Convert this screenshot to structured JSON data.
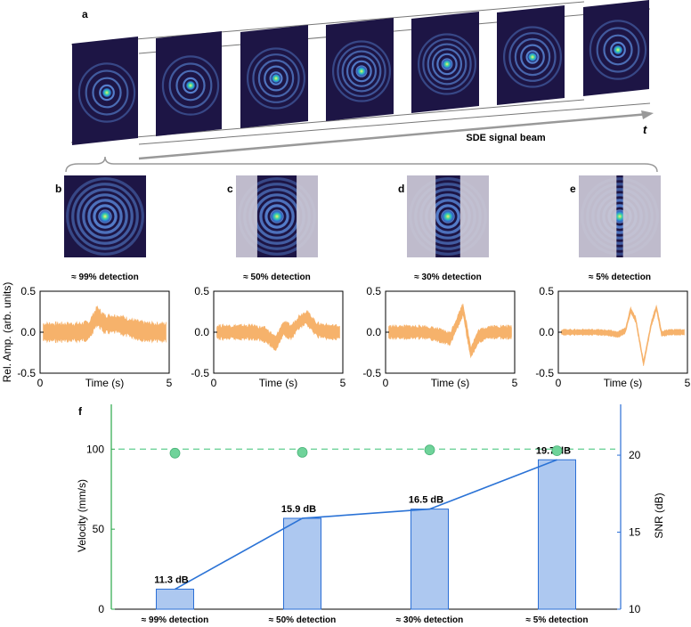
{
  "panel_labels": {
    "a": "a",
    "b": "b",
    "c": "c",
    "d": "d",
    "e": "e",
    "f": "f"
  },
  "top": {
    "beam_label": "SDE signal beam",
    "time_label": "t"
  },
  "colors": {
    "beam_dark": "#1d1545",
    "ring": "#6aa6ff",
    "mask": "#cbc8d6",
    "signal": "#f6b26b",
    "bar_fill": "#adc8f0",
    "bar_edge": "#2b6fd6",
    "snr_line": "#2b73d6",
    "marker": "#6fd39a",
    "left_axis": "#2aa84a",
    "right_axis": "#2b6fd6"
  },
  "chart_data": [
    {
      "type": "line",
      "panel": "b",
      "detection_label": "≈ 99% detection",
      "open_fraction": 1.0,
      "xlabel": "Time (s)",
      "ylabel": "Rel. Amp. (arb. units)",
      "xlim": [
        0,
        5
      ],
      "ylim": [
        -0.5,
        0.5
      ],
      "xticks": [
        "0",
        "5"
      ],
      "yticks": [
        "0.5",
        "0.0",
        "-0.5"
      ],
      "x": [
        0,
        0.5,
        1,
        1.5,
        1.9,
        2.2,
        2.5,
        3,
        3.5,
        4,
        4.5,
        5
      ],
      "y": [
        0,
        0,
        0,
        0,
        0.02,
        0.2,
        0.1,
        0.1,
        0.05,
        0.01,
        0,
        0
      ],
      "noise": 0.13
    },
    {
      "type": "line",
      "panel": "c",
      "detection_label": "≈ 50% detection",
      "open_fraction": 0.48,
      "xlabel": "Time (s)",
      "xlim": [
        0,
        5
      ],
      "ylim": [
        -0.5,
        0.5
      ],
      "xticks": [
        "0",
        "5"
      ],
      "yticks": [
        "0.5",
        "0.0",
        "-0.5"
      ],
      "x": [
        0,
        0.5,
        1,
        1.5,
        2,
        2.4,
        2.7,
        3,
        3.3,
        3.6,
        4,
        4.5,
        5
      ],
      "y": [
        0,
        0,
        0,
        0,
        -0.03,
        -0.14,
        0.05,
        0,
        0.12,
        0.18,
        0.03,
        0,
        0
      ],
      "noise": 0.1
    },
    {
      "type": "line",
      "panel": "d",
      "detection_label": "≈ 30% detection",
      "open_fraction": 0.3,
      "xlabel": "Time (s)",
      "xlim": [
        0,
        5
      ],
      "ylim": [
        -0.5,
        0.5
      ],
      "xticks": [
        "0",
        "5"
      ],
      "yticks": [
        "0.5",
        "0.0",
        "-0.5"
      ],
      "x": [
        0,
        0.5,
        1,
        1.5,
        2,
        2.5,
        2.7,
        3,
        3.3,
        3.6,
        4,
        4.5,
        5
      ],
      "y": [
        0,
        0,
        0,
        0,
        -0.03,
        -0.08,
        0.06,
        0.28,
        -0.25,
        -0.05,
        0,
        0,
        0
      ],
      "noise": 0.09
    },
    {
      "type": "line",
      "panel": "e",
      "detection_label": "≈ 5% detection",
      "open_fraction": 0.08,
      "xlabel": "Time (s)",
      "xlim": [
        0,
        5
      ],
      "ylim": [
        -0.5,
        0.5
      ],
      "xticks": [
        "0",
        "5"
      ],
      "yticks": [
        "0.5",
        "0.0",
        "-0.5"
      ],
      "x": [
        0,
        0.5,
        1,
        1.5,
        2,
        2.3,
        2.6,
        2.8,
        3,
        3.3,
        3.6,
        3.8,
        4,
        4.3,
        4.6,
        5
      ],
      "y": [
        0,
        0,
        0,
        0,
        -0.01,
        -0.03,
        0.02,
        0.27,
        0.15,
        -0.38,
        0.1,
        0.3,
        -0.02,
        0,
        0,
        0
      ],
      "noise": 0.04
    },
    {
      "type": "bar",
      "panel": "f",
      "categories": [
        "≈ 99% detection",
        "≈ 50% detection",
        "≈ 30% detection",
        "≈ 5% detection"
      ],
      "series": [
        {
          "values": [
            11.3,
            15.9,
            16.5,
            19.7
          ],
          "labels": [
            "11.3 dB",
            "15.9 dB",
            "16.5 dB",
            "19.7 dB"
          ]
        },
        {
          "values": [
            97.5,
            98.0,
            99.5,
            99.0
          ]
        }
      ],
      "reference_line": 100,
      "ylabel": "Velocity (mm/s)",
      "y2label": "SNR (dB)",
      "ylim": [
        0,
        128
      ],
      "y2lim": [
        10,
        23.3
      ],
      "yticks": [
        "0",
        "50",
        "100"
      ],
      "y2ticks": [
        "10",
        "15",
        "20"
      ]
    }
  ]
}
